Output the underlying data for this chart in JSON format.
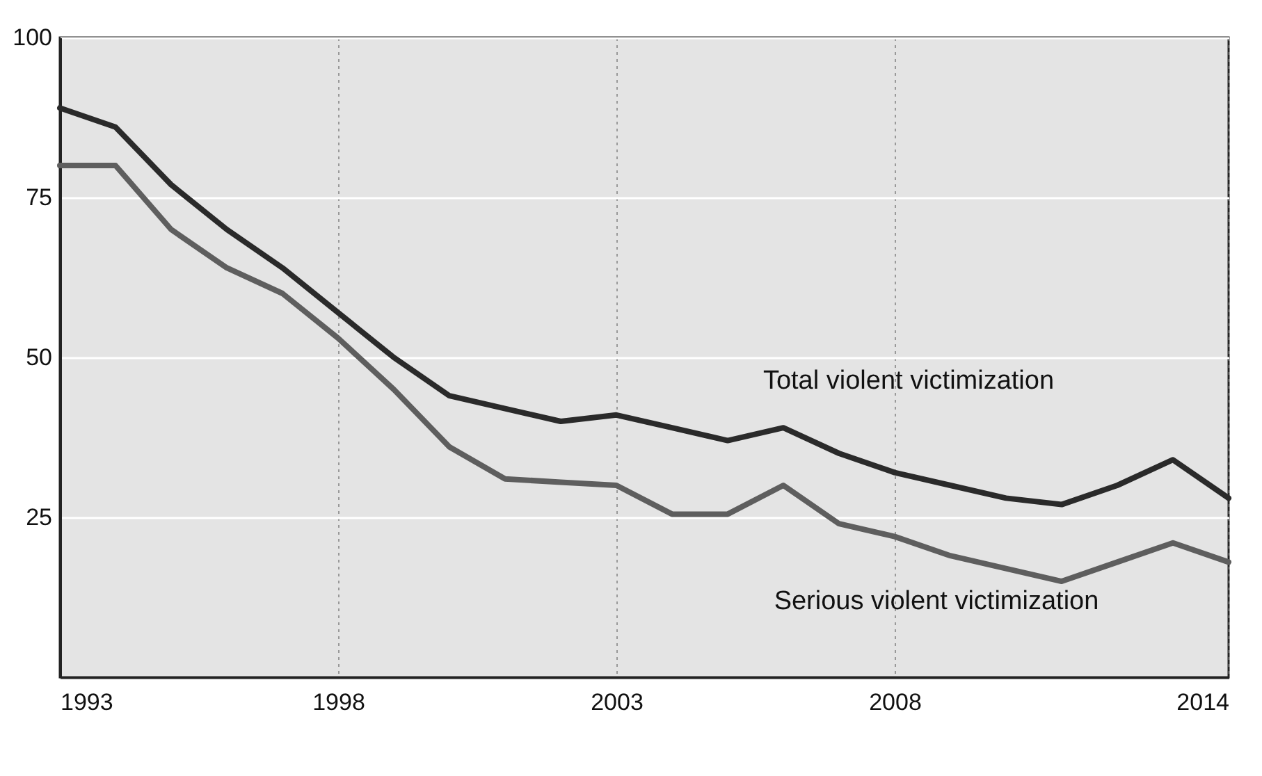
{
  "chart_data": {
    "type": "line",
    "x": [
      1993,
      1994,
      1995,
      1996,
      1997,
      1998,
      1999,
      2000,
      2001,
      2002,
      2003,
      2004,
      2005,
      2006,
      2007,
      2008,
      2009,
      2010,
      2011,
      2012,
      2013,
      2014
    ],
    "series": [
      {
        "name": "Total violent victimization",
        "color": "#2a2a2a",
        "values": [
          89,
          86,
          77,
          70,
          64,
          57,
          50,
          44,
          42,
          40,
          41,
          39,
          37,
          39,
          35,
          32,
          30,
          28,
          27,
          30,
          34,
          28
        ]
      },
      {
        "name": "Serious violent victimization",
        "color": "#5e5e5e",
        "values": [
          80,
          80,
          70,
          64,
          60,
          53,
          45,
          36,
          31,
          30.5,
          30,
          25.5,
          25.5,
          30,
          24,
          22,
          19,
          17,
          15,
          18,
          21,
          18
        ]
      }
    ],
    "xlim": [
      1993,
      2014
    ],
    "xticks": [
      1993,
      1998,
      2003,
      2008,
      2014
    ],
    "ylim": [
      0,
      100
    ],
    "yticks": [
      25,
      50,
      75,
      100
    ],
    "grid": true,
    "legend": false,
    "marker": "none",
    "line_style": "solid"
  }
}
